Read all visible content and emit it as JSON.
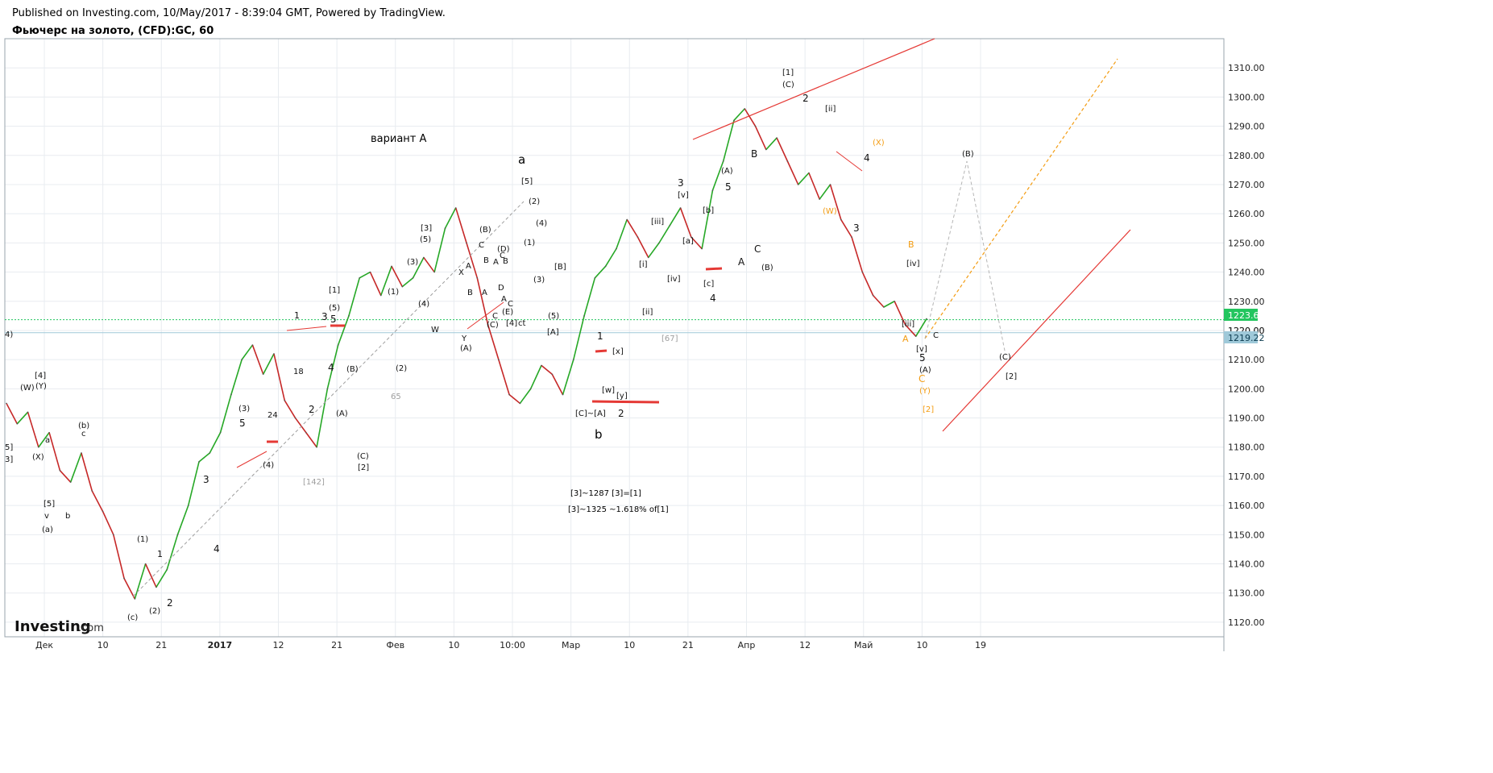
{
  "header": {
    "published": "Published on Investing.com, 10/May/2017 - 8:39:04 GMT, Powered by TradingView.",
    "title": "Фьючерс на золото, (CFD):GC, 60"
  },
  "logo": {
    "main": "Investing",
    "suffix": ".com"
  },
  "colors": {
    "up": "#26a826",
    "down": "#c62828",
    "trend": "#e53935",
    "orange": "#f39c12",
    "green_line": "#22c55e",
    "cyan_line": "#9fc9d9",
    "grid": "#e8ecf0"
  },
  "chart_data": {
    "type": "line",
    "title": "Фьючерс на золото, (CFD):GC, 60",
    "ylim": [
      1115,
      1320
    ],
    "y_ticks": [
      1120,
      1130,
      1140,
      1150,
      1160,
      1170,
      1180,
      1190,
      1200,
      1210,
      1220,
      1230,
      1240,
      1250,
      1260,
      1270,
      1280,
      1290,
      1300,
      1310
    ],
    "x_ticks": [
      {
        "label": "Дек",
        "bold": false
      },
      {
        "label": "10",
        "bold": false
      },
      {
        "label": "21",
        "bold": false
      },
      {
        "label": "2017",
        "bold": true
      },
      {
        "label": "12",
        "bold": false
      },
      {
        "label": "21",
        "bold": false
      },
      {
        "label": "Фев",
        "bold": false
      },
      {
        "label": "10",
        "bold": false
      },
      {
        "label": "10:00",
        "bold": false
      },
      {
        "label": "Мар",
        "bold": false
      },
      {
        "label": "10",
        "bold": false
      },
      {
        "label": "21",
        "bold": false
      },
      {
        "label": "Апр",
        "bold": false
      },
      {
        "label": "12",
        "bold": false
      },
      {
        "label": "Май",
        "bold": false
      },
      {
        "label": "10",
        "bold": false
      },
      {
        "label": "19",
        "bold": false
      }
    ],
    "last_price": "1223.67",
    "level_price": "1219.22",
    "mid_price": "1220.00",
    "series": [
      {
        "values": [
          1195,
          1188,
          1192,
          1180,
          1185,
          1172,
          1168,
          1178,
          1165,
          1158,
          1150,
          1135,
          1128,
          1140,
          1132,
          1138,
          1150,
          1160,
          1175,
          1178,
          1185,
          1198,
          1210,
          1215,
          1205,
          1212,
          1196,
          1190,
          1185,
          1180,
          1200,
          1215,
          1225,
          1238,
          1240,
          1232,
          1242,
          1235,
          1238,
          1245,
          1240,
          1255,
          1262,
          1250,
          1238,
          1222,
          1210,
          1198,
          1195,
          1200,
          1208,
          1205,
          1198,
          1210,
          1225,
          1238,
          1242,
          1248,
          1258,
          1252,
          1245,
          1250,
          1256,
          1262,
          1252,
          1248,
          1268,
          1278,
          1292,
          1296,
          1290,
          1282,
          1286,
          1278,
          1270,
          1274,
          1265,
          1270,
          1258,
          1252,
          1240,
          1232,
          1228,
          1230,
          1222,
          1218,
          1224
        ]
      }
    ]
  },
  "annotations": {
    "variant": "вариант A",
    "wave_a": "a",
    "wave_b": "b",
    "note1": "[3]~1287 [3]=[1]",
    "note2": "[3]~1325 ~1.618% of[1]"
  }
}
